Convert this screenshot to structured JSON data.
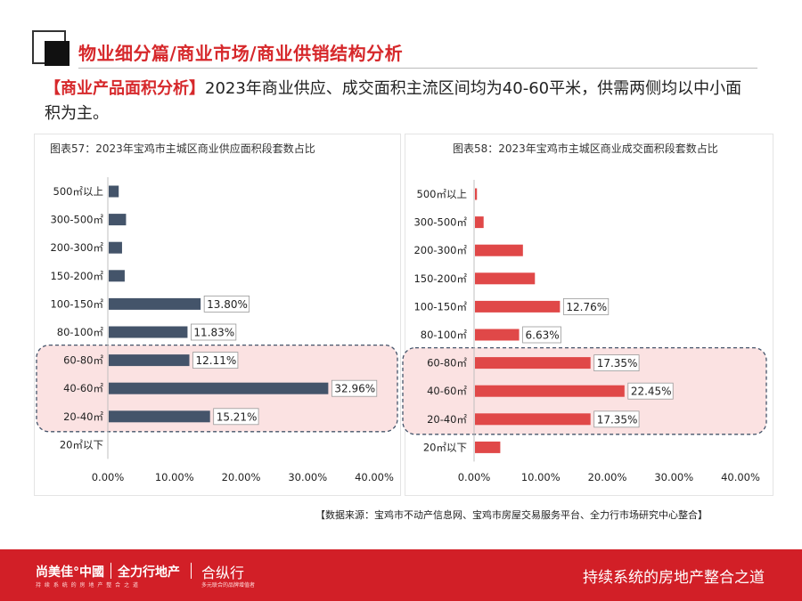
{
  "header": {
    "title": "物业细分篇/商业市场/商业供销结构分析",
    "intro_tag": "【商业产品面积分析】",
    "intro_text": "2023年商业供应、成交面积主流区间均为40-60平米，供需两侧均以中小面积为主。"
  },
  "source_note": "【数据来源：宝鸡市不动产信息网、宝鸡市房屋交易服务平台、全力行市场研究中心整合】",
  "footer": {
    "brand1": "尚美佳°中國",
    "brand1_sub": "持 续 系 统 的 房 地 产 整 合 之 道",
    "brand2": "全力行地产",
    "brand3": "合纵行",
    "brand3_sub": "多元联合的品牌增值者",
    "slogan": "持续系统的房地产整合之道"
  },
  "colors": {
    "accent": "#d6282b",
    "supply_bar": "#44546a",
    "deal_bar": "#e04848",
    "highlight_fill": "#fbe2e2",
    "highlight_border": "#44546a"
  },
  "chart_data": [
    {
      "type": "bar",
      "orientation": "horizontal",
      "title": "图表57：2023年宝鸡市主城区商业供应面积段套数占比",
      "categories": [
        "500㎡以上",
        "300-500㎡",
        "200-300㎡",
        "150-200㎡",
        "100-150㎡",
        "80-100㎡",
        "60-80㎡",
        "40-60㎡",
        "20-40㎡",
        "20㎡以下"
      ],
      "values": [
        1.5,
        2.6,
        2.0,
        2.4,
        13.8,
        11.83,
        12.11,
        32.96,
        15.21,
        0
      ],
      "value_labels": [
        "",
        "",
        "",
        "",
        "13.80%",
        "11.83%",
        "12.11%",
        "32.96%",
        "15.21%",
        ""
      ],
      "xlim": [
        0,
        40
      ],
      "xticks": [
        "0.00%",
        "10.00%",
        "20.00%",
        "30.00%",
        "40.00%"
      ],
      "highlighted_categories": [
        "60-80㎡",
        "40-60㎡",
        "20-40㎡"
      ],
      "bar_color": "#44546a"
    },
    {
      "type": "bar",
      "orientation": "horizontal",
      "title": "图表58：2023年宝鸡市主城区商业成交面积段套数占比",
      "categories": [
        "500㎡以上",
        "300-500㎡",
        "200-300㎡",
        "150-200㎡",
        "100-150㎡",
        "80-100㎡",
        "60-80㎡",
        "40-60㎡",
        "20-40㎡",
        "20㎡以下"
      ],
      "values": [
        0.3,
        1.3,
        7.2,
        9.0,
        12.76,
        6.63,
        17.35,
        22.45,
        17.35,
        3.8
      ],
      "value_labels": [
        "",
        "",
        "",
        "",
        "12.76%",
        "6.63%",
        "17.35%",
        "22.45%",
        "17.35%",
        ""
      ],
      "xlim": [
        0,
        40
      ],
      "xticks": [
        "0.00%",
        "10.00%",
        "20.00%",
        "30.00%",
        "40.00%"
      ],
      "highlighted_categories": [
        "60-80㎡",
        "40-60㎡",
        "20-40㎡"
      ],
      "bar_color": "#e04848"
    }
  ]
}
